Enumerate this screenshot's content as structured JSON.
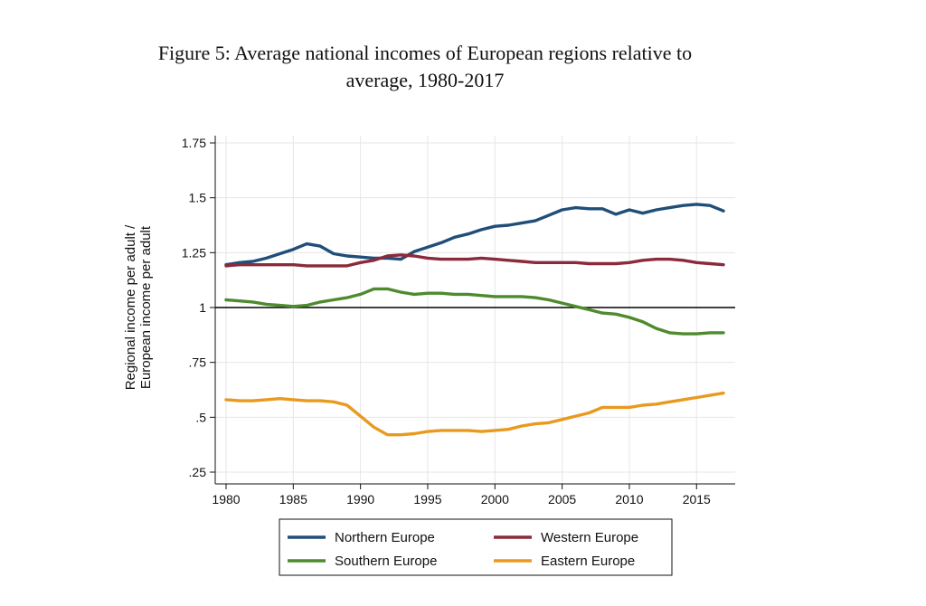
{
  "figure": {
    "title_line1": "Figure 5: Average national incomes of European regions relative to",
    "title_line2": "average, 1980-2017"
  },
  "chart_data": {
    "type": "line",
    "xlabel": "",
    "ylabel_line1": "Regional income per adult /",
    "ylabel_line2": "European income per adult",
    "xlim": [
      1980,
      2017
    ],
    "ylim": [
      0.25,
      1.75
    ],
    "x_ticks": [
      {
        "value": 1980,
        "label": "1980"
      },
      {
        "value": 1985,
        "label": "1985"
      },
      {
        "value": 1990,
        "label": "1990"
      },
      {
        "value": 1995,
        "label": "1995"
      },
      {
        "value": 2000,
        "label": "2000"
      },
      {
        "value": 2005,
        "label": "2005"
      },
      {
        "value": 2010,
        "label": "2010"
      },
      {
        "value": 2015,
        "label": "2015"
      }
    ],
    "y_ticks": [
      {
        "value": 0.25,
        "label": ".25"
      },
      {
        "value": 0.5,
        "label": ".5"
      },
      {
        "value": 0.75,
        "label": ".75"
      },
      {
        "value": 1.0,
        "label": "1"
      },
      {
        "value": 1.25,
        "label": "1.25"
      },
      {
        "value": 1.5,
        "label": "1.5"
      },
      {
        "value": 1.75,
        "label": "1.75"
      }
    ],
    "reference_line": 1.0,
    "grid": "vertical and horizontal at ticks",
    "legend_placement": "bottom",
    "x": [
      1980,
      1981,
      1982,
      1983,
      1984,
      1985,
      1986,
      1987,
      1988,
      1989,
      1990,
      1991,
      1992,
      1993,
      1994,
      1995,
      1996,
      1997,
      1998,
      1999,
      2000,
      2001,
      2002,
      2003,
      2004,
      2005,
      2006,
      2007,
      2008,
      2009,
      2010,
      2011,
      2012,
      2013,
      2014,
      2015,
      2016,
      2017
    ],
    "series": [
      {
        "name": "Northern Europe",
        "color": "#1f4e79",
        "values": [
          1.195,
          1.205,
          1.21,
          1.225,
          1.245,
          1.265,
          1.29,
          1.28,
          1.245,
          1.235,
          1.23,
          1.225,
          1.225,
          1.22,
          1.255,
          1.275,
          1.295,
          1.32,
          1.335,
          1.355,
          1.37,
          1.375,
          1.385,
          1.395,
          1.42,
          1.445,
          1.455,
          1.45,
          1.45,
          1.425,
          1.445,
          1.43,
          1.445,
          1.455,
          1.465,
          1.47,
          1.465,
          1.44
        ]
      },
      {
        "name": "Western Europe",
        "color": "#8b2a3c",
        "values": [
          1.19,
          1.195,
          1.195,
          1.195,
          1.195,
          1.195,
          1.19,
          1.19,
          1.19,
          1.19,
          1.205,
          1.215,
          1.235,
          1.24,
          1.235,
          1.225,
          1.22,
          1.22,
          1.22,
          1.225,
          1.22,
          1.215,
          1.21,
          1.205,
          1.205,
          1.205,
          1.205,
          1.2,
          1.2,
          1.2,
          1.205,
          1.215,
          1.22,
          1.22,
          1.215,
          1.205,
          1.2,
          1.195
        ]
      },
      {
        "name": "Southern Europe",
        "color": "#4e8a2e",
        "values": [
          1.035,
          1.03,
          1.025,
          1.015,
          1.01,
          1.005,
          1.01,
          1.025,
          1.035,
          1.045,
          1.06,
          1.085,
          1.085,
          1.07,
          1.06,
          1.065,
          1.065,
          1.06,
          1.06,
          1.055,
          1.05,
          1.05,
          1.05,
          1.045,
          1.035,
          1.02,
          1.005,
          0.99,
          0.975,
          0.97,
          0.955,
          0.935,
          0.905,
          0.885,
          0.88,
          0.88,
          0.885,
          0.885
        ]
      },
      {
        "name": "Eastern Europe",
        "color": "#e89a1e",
        "values": [
          0.58,
          0.575,
          0.575,
          0.58,
          0.585,
          0.58,
          0.575,
          0.575,
          0.57,
          0.555,
          0.505,
          0.455,
          0.42,
          0.42,
          0.425,
          0.435,
          0.44,
          0.44,
          0.44,
          0.435,
          0.44,
          0.445,
          0.46,
          0.47,
          0.475,
          0.49,
          0.505,
          0.52,
          0.545,
          0.545,
          0.545,
          0.555,
          0.56,
          0.57,
          0.58,
          0.59,
          0.6,
          0.61
        ]
      }
    ]
  },
  "legend": {
    "items": [
      {
        "label": "Northern Europe",
        "color": "#1f4e79"
      },
      {
        "label": "Western Europe",
        "color": "#8b2a3c"
      },
      {
        "label": "Southern Europe",
        "color": "#4e8a2e"
      },
      {
        "label": "Eastern Europe",
        "color": "#e89a1e"
      }
    ]
  }
}
